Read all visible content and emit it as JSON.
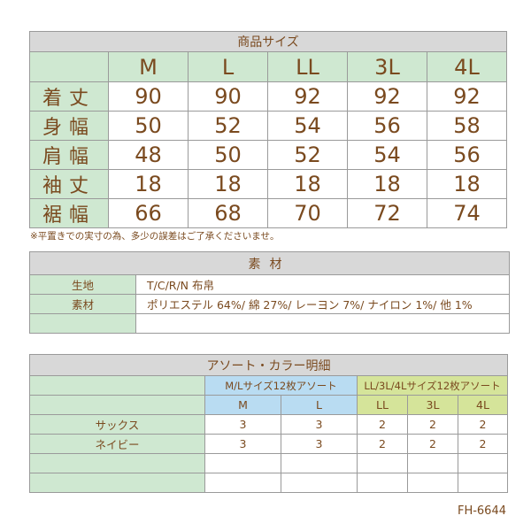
{
  "size_table": {
    "title": "商品サイズ",
    "sizes": [
      "M",
      "L",
      "LL",
      "3L",
      "4L"
    ],
    "rows": [
      {
        "label": "着丈",
        "values": [
          "90",
          "90",
          "92",
          "92",
          "92"
        ]
      },
      {
        "label": "身幅",
        "values": [
          "50",
          "52",
          "54",
          "56",
          "58"
        ]
      },
      {
        "label": "肩幅",
        "values": [
          "48",
          "50",
          "52",
          "54",
          "56"
        ]
      },
      {
        "label": "袖丈",
        "values": [
          "18",
          "18",
          "18",
          "18",
          "18"
        ]
      },
      {
        "label": "裾幅",
        "values": [
          "66",
          "68",
          "70",
          "72",
          "74"
        ]
      }
    ],
    "note": "※平置きでの実寸の為、多少の誤差はご了承くださいませ。"
  },
  "material_table": {
    "title": "素材",
    "rows": [
      {
        "label": "生地",
        "value": "T/C/R/N 布帛"
      },
      {
        "label": "素材",
        "value": "ポリエステル 64%/ 綿 27%/ レーヨン 7%/ ナイロン 1%/ 他 1%"
      },
      {
        "label": "",
        "value": ""
      }
    ]
  },
  "assort_table": {
    "title": "アソート・カラー明細",
    "groups": [
      {
        "label": "M/Lサイズ12枚アソート",
        "sizes": [
          "M",
          "L"
        ],
        "color": "#b9dcf2"
      },
      {
        "label": "LL/3L/4Lサイズ12枚アソート",
        "sizes": [
          "LL",
          "3L",
          "4L"
        ],
        "color": "#d5e49a"
      }
    ],
    "rows": [
      {
        "label": "サックス",
        "values": [
          "3",
          "3",
          "2",
          "2",
          "2"
        ]
      },
      {
        "label": "ネイビー",
        "values": [
          "3",
          "3",
          "2",
          "2",
          "2"
        ]
      },
      {
        "label": "",
        "values": [
          "",
          "",
          "",
          "",
          ""
        ]
      },
      {
        "label": "",
        "values": [
          "",
          "",
          "",
          "",
          ""
        ]
      }
    ]
  },
  "product_code": "FH-6644",
  "colors": {
    "text": "#7a4a1f",
    "title_bg": "#d8d8d8",
    "label_bg": "#cfe8d1",
    "border": "#9a9a9a"
  }
}
